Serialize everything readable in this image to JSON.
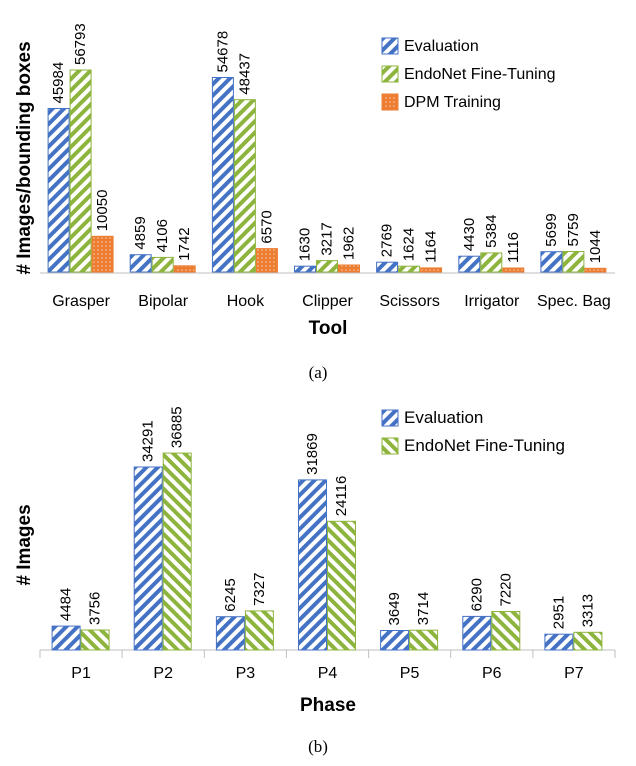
{
  "chart_data": [
    {
      "type": "bar",
      "title": "",
      "xlabel": "Tool",
      "ylabel": "# Images/bounding boxes",
      "caption": "(a)",
      "categories": [
        "Grasper",
        "Bipolar",
        "Hook",
        "Clipper",
        "Scissors",
        "Irrigator",
        "Spec. Bag"
      ],
      "ylim": [
        0,
        60000
      ],
      "grid": false,
      "legend_position": "top-right",
      "series": [
        {
          "name": "Evaluation",
          "values": [
            45984,
            4859,
            54678,
            1630,
            2769,
            4430,
            5699
          ],
          "color": "#4472C4",
          "pattern": "diag-right"
        },
        {
          "name": "EndoNet Fine-Tuning",
          "values": [
            56793,
            4106,
            48437,
            3217,
            1624,
            5384,
            5759
          ],
          "color": "#8DB43C",
          "pattern": "diag-right"
        },
        {
          "name": "DPM Training",
          "values": [
            10050,
            1742,
            6570,
            1962,
            1164,
            1116,
            1044
          ],
          "color": "#ED7D31",
          "pattern": "dots"
        }
      ]
    },
    {
      "type": "bar",
      "title": "",
      "xlabel": "Phase",
      "ylabel": "# Images",
      "caption": "(b)",
      "categories": [
        "P1",
        "P2",
        "P3",
        "P4",
        "P5",
        "P6",
        "P7"
      ],
      "ylim": [
        0,
        40000
      ],
      "grid": false,
      "legend_position": "top-right",
      "series": [
        {
          "name": "Evaluation",
          "values": [
            4484,
            34291,
            6245,
            31869,
            3649,
            6290,
            2951
          ],
          "color": "#4472C4",
          "pattern": "diag-right"
        },
        {
          "name": "EndoNet Fine-Tuning",
          "values": [
            3756,
            36885,
            7327,
            24116,
            3714,
            7220,
            3313
          ],
          "color": "#8DB43C",
          "pattern": "diag-left"
        }
      ]
    }
  ]
}
